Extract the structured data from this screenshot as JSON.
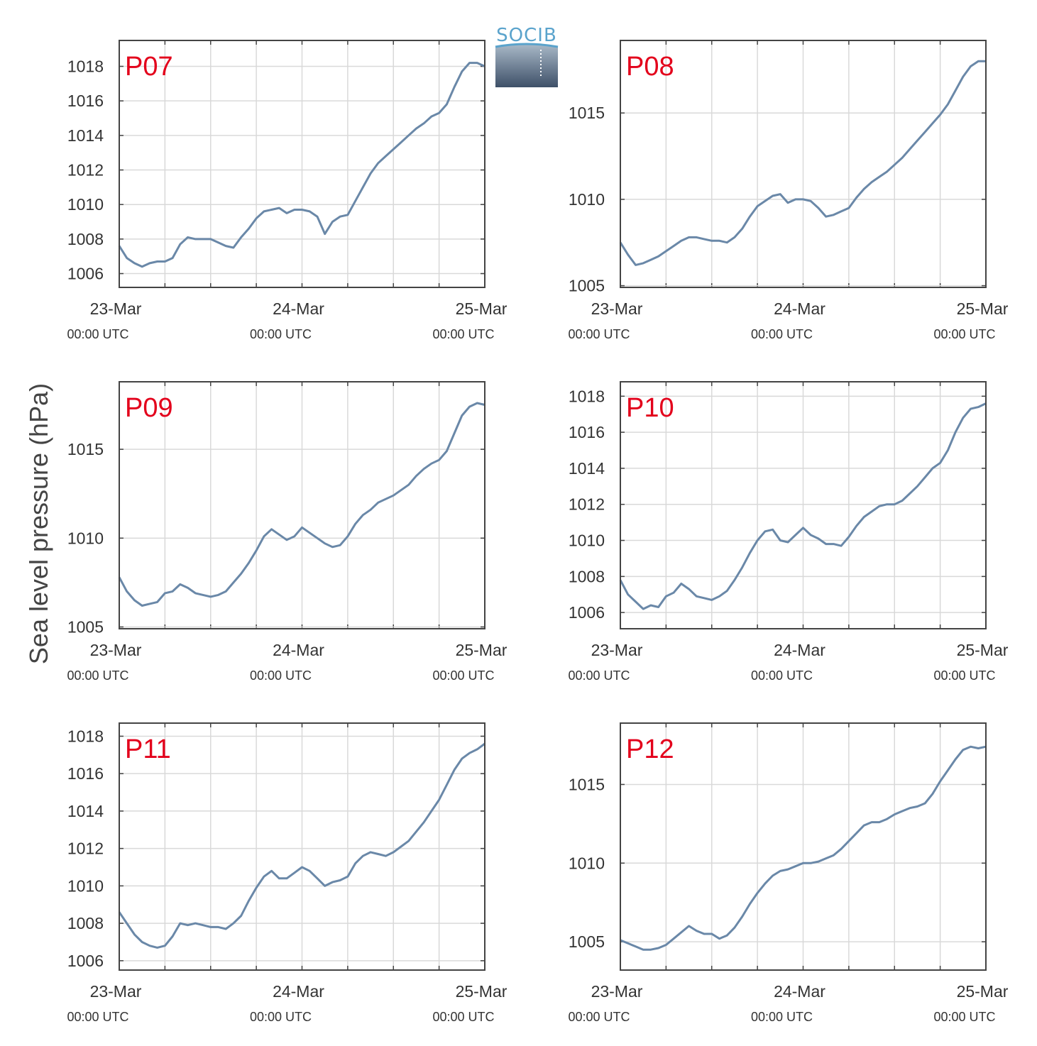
{
  "figure": {
    "ylabel": "Sea level pressure (hPa)",
    "logo_text": "SOCIB",
    "colors": {
      "series": "#6a88a8",
      "panel_label": "#e3001b",
      "grid": "#d9d9d9",
      "axis": "#444444",
      "logo_blue": "#5aa3cc",
      "logo_dark": "#3e5068"
    }
  },
  "chart_data": [
    {
      "type": "line",
      "title": "P07",
      "x_tick_dates": [
        "23-Mar",
        "24-Mar",
        "25-Mar"
      ],
      "x_tick_times": [
        "00:00 UTC",
        "00:00 UTC",
        "00:00 UTC"
      ],
      "x_unit": "hours since 23-Mar 00:00 UTC",
      "xlim": [
        0,
        48
      ],
      "ylim": [
        1005.2,
        1019.5
      ],
      "yticks": [
        1006,
        1008,
        1010,
        1012,
        1014,
        1016,
        1018
      ],
      "grid": true,
      "series": [
        {
          "color": "#6a88a8",
          "x": [
            0,
            1,
            2,
            3,
            4,
            5,
            6,
            7,
            8,
            9,
            10,
            11,
            12,
            13,
            14,
            15,
            16,
            17,
            18,
            19,
            20,
            21,
            22,
            23,
            24,
            25,
            26,
            27,
            28,
            29,
            30,
            31,
            32,
            33,
            34,
            35,
            36,
            37,
            38,
            39,
            40,
            41,
            42,
            43,
            44,
            45,
            46,
            47,
            48
          ],
          "y": [
            1007.6,
            1006.9,
            1006.6,
            1006.4,
            1006.6,
            1006.7,
            1006.7,
            1006.9,
            1007.7,
            1008.1,
            1008.0,
            1008.0,
            1008.0,
            1007.8,
            1007.6,
            1007.5,
            1008.1,
            1008.6,
            1009.2,
            1009.6,
            1009.7,
            1009.8,
            1009.5,
            1009.7,
            1009.7,
            1009.6,
            1009.3,
            1008.3,
            1009.0,
            1009.3,
            1009.4,
            1010.2,
            1011.0,
            1011.8,
            1012.4,
            1012.8,
            1013.2,
            1013.6,
            1014.0,
            1014.4,
            1014.7,
            1015.1,
            1015.3,
            1015.8,
            1016.8,
            1017.7,
            1018.2,
            1018.2,
            1018.0
          ]
        }
      ]
    },
    {
      "type": "line",
      "title": "P08",
      "x_tick_dates": [
        "23-Mar",
        "24-Mar",
        "25-Mar"
      ],
      "x_tick_times": [
        "00:00 UTC",
        "00:00 UTC",
        "00:00 UTC"
      ],
      "x_unit": "hours since 23-Mar 00:00 UTC",
      "xlim": [
        0,
        48
      ],
      "ylim": [
        1004.9,
        1019.2
      ],
      "yticks": [
        1005,
        1010,
        1015
      ],
      "grid": true,
      "series": [
        {
          "color": "#6a88a8",
          "x": [
            0,
            1,
            2,
            3,
            4,
            5,
            6,
            7,
            8,
            9,
            10,
            11,
            12,
            13,
            14,
            15,
            16,
            17,
            18,
            19,
            20,
            21,
            22,
            23,
            24,
            25,
            26,
            27,
            28,
            29,
            30,
            31,
            32,
            33,
            34,
            35,
            36,
            37,
            38,
            39,
            40,
            41,
            42,
            43,
            44,
            45,
            46,
            47,
            48
          ],
          "y": [
            1007.5,
            1006.8,
            1006.2,
            1006.3,
            1006.5,
            1006.7,
            1007.0,
            1007.3,
            1007.6,
            1007.8,
            1007.8,
            1007.7,
            1007.6,
            1007.6,
            1007.5,
            1007.8,
            1008.3,
            1009.0,
            1009.6,
            1009.9,
            1010.2,
            1010.3,
            1009.8,
            1010.0,
            1010.0,
            1009.9,
            1009.5,
            1009.0,
            1009.1,
            1009.3,
            1009.5,
            1010.1,
            1010.6,
            1011.0,
            1011.3,
            1011.6,
            1012.0,
            1012.4,
            1012.9,
            1013.4,
            1013.9,
            1014.4,
            1014.9,
            1015.5,
            1016.3,
            1017.1,
            1017.7,
            1018.0,
            1018.0
          ]
        }
      ]
    },
    {
      "type": "line",
      "title": "P09",
      "x_tick_dates": [
        "23-Mar",
        "24-Mar",
        "25-Mar"
      ],
      "x_tick_times": [
        "00:00 UTC",
        "00:00 UTC",
        "00:00 UTC"
      ],
      "x_unit": "hours since 23-Mar 00:00 UTC",
      "xlim": [
        0,
        48
      ],
      "ylim": [
        1004.9,
        1018.8
      ],
      "yticks": [
        1005,
        1010,
        1015
      ],
      "grid": true,
      "series": [
        {
          "color": "#6a88a8",
          "x": [
            0,
            1,
            2,
            3,
            4,
            5,
            6,
            7,
            8,
            9,
            10,
            11,
            12,
            13,
            14,
            15,
            16,
            17,
            18,
            19,
            20,
            21,
            22,
            23,
            24,
            25,
            26,
            27,
            28,
            29,
            30,
            31,
            32,
            33,
            34,
            35,
            36,
            37,
            38,
            39,
            40,
            41,
            42,
            43,
            44,
            45,
            46,
            47,
            48
          ],
          "y": [
            1007.8,
            1007.0,
            1006.5,
            1006.2,
            1006.3,
            1006.4,
            1006.9,
            1007.0,
            1007.4,
            1007.2,
            1006.9,
            1006.8,
            1006.7,
            1006.8,
            1007.0,
            1007.5,
            1008.0,
            1008.6,
            1009.3,
            1010.1,
            1010.5,
            1010.2,
            1009.9,
            1010.1,
            1010.6,
            1010.3,
            1010.0,
            1009.7,
            1009.5,
            1009.6,
            1010.1,
            1010.8,
            1011.3,
            1011.6,
            1012.0,
            1012.2,
            1012.4,
            1012.7,
            1013.0,
            1013.5,
            1013.9,
            1014.2,
            1014.4,
            1014.9,
            1015.9,
            1016.9,
            1017.4,
            1017.6,
            1017.5
          ]
        }
      ]
    },
    {
      "type": "line",
      "title": "P10",
      "x_tick_dates": [
        "23-Mar",
        "24-Mar",
        "25-Mar"
      ],
      "x_tick_times": [
        "00:00 UTC",
        "00:00 UTC",
        "00:00 UTC"
      ],
      "x_unit": "hours since 23-Mar 00:00 UTC",
      "xlim": [
        0,
        48
      ],
      "ylim": [
        1005.1,
        1018.8
      ],
      "yticks": [
        1006,
        1008,
        1010,
        1012,
        1014,
        1016,
        1018
      ],
      "grid": true,
      "series": [
        {
          "color": "#6a88a8",
          "x": [
            0,
            1,
            2,
            3,
            4,
            5,
            6,
            7,
            8,
            9,
            10,
            11,
            12,
            13,
            14,
            15,
            16,
            17,
            18,
            19,
            20,
            21,
            22,
            23,
            24,
            25,
            26,
            27,
            28,
            29,
            30,
            31,
            32,
            33,
            34,
            35,
            36,
            37,
            38,
            39,
            40,
            41,
            42,
            43,
            44,
            45,
            46,
            47,
            48
          ],
          "y": [
            1007.8,
            1007.0,
            1006.6,
            1006.2,
            1006.4,
            1006.3,
            1006.9,
            1007.1,
            1007.6,
            1007.3,
            1006.9,
            1006.8,
            1006.7,
            1006.9,
            1007.2,
            1007.8,
            1008.5,
            1009.3,
            1010.0,
            1010.5,
            1010.6,
            1010.0,
            1009.9,
            1010.3,
            1010.7,
            1010.3,
            1010.1,
            1009.8,
            1009.8,
            1009.7,
            1010.2,
            1010.8,
            1011.3,
            1011.6,
            1011.9,
            1012.0,
            1012.0,
            1012.2,
            1012.6,
            1013.0,
            1013.5,
            1014.0,
            1014.3,
            1015.0,
            1016.0,
            1016.8,
            1017.3,
            1017.4,
            1017.6
          ]
        }
      ]
    },
    {
      "type": "line",
      "title": "P11",
      "x_tick_dates": [
        "23-Mar",
        "24-Mar",
        "25-Mar"
      ],
      "x_tick_times": [
        "00:00 UTC",
        "00:00 UTC",
        "00:00 UTC"
      ],
      "x_unit": "hours since 23-Mar 00:00 UTC",
      "xlim": [
        0,
        48
      ],
      "ylim": [
        1005.5,
        1018.7
      ],
      "yticks": [
        1006,
        1008,
        1010,
        1012,
        1014,
        1016,
        1018
      ],
      "grid": true,
      "series": [
        {
          "color": "#6a88a8",
          "x": [
            0,
            1,
            2,
            3,
            4,
            5,
            6,
            7,
            8,
            9,
            10,
            11,
            12,
            13,
            14,
            15,
            16,
            17,
            18,
            19,
            20,
            21,
            22,
            23,
            24,
            25,
            26,
            27,
            28,
            29,
            30,
            31,
            32,
            33,
            34,
            35,
            36,
            37,
            38,
            39,
            40,
            41,
            42,
            43,
            44,
            45,
            46,
            47,
            48
          ],
          "y": [
            1008.6,
            1008.0,
            1007.4,
            1007.0,
            1006.8,
            1006.7,
            1006.8,
            1007.3,
            1008.0,
            1007.9,
            1008.0,
            1007.9,
            1007.8,
            1007.8,
            1007.7,
            1008.0,
            1008.4,
            1009.2,
            1009.9,
            1010.5,
            1010.8,
            1010.4,
            1010.4,
            1010.7,
            1011.0,
            1010.8,
            1010.4,
            1010.0,
            1010.2,
            1010.3,
            1010.5,
            1011.2,
            1011.6,
            1011.8,
            1011.7,
            1011.6,
            1011.8,
            1012.1,
            1012.4,
            1012.9,
            1013.4,
            1014.0,
            1014.6,
            1015.4,
            1016.2,
            1016.8,
            1017.1,
            1017.3,
            1017.6
          ]
        }
      ]
    },
    {
      "type": "line",
      "title": "P12",
      "x_tick_dates": [
        "23-Mar",
        "24-Mar",
        "25-Mar"
      ],
      "x_tick_times": [
        "00:00 UTC",
        "00:00 UTC",
        "00:00 UTC"
      ],
      "x_unit": "hours since 23-Mar 00:00 UTC",
      "xlim": [
        0,
        48
      ],
      "ylim": [
        1003.2,
        1018.9
      ],
      "yticks": [
        1005,
        1010,
        1015
      ],
      "grid": true,
      "series": [
        {
          "color": "#6a88a8",
          "x": [
            0,
            1,
            2,
            3,
            4,
            5,
            6,
            7,
            8,
            9,
            10,
            11,
            12,
            13,
            14,
            15,
            16,
            17,
            18,
            19,
            20,
            21,
            22,
            23,
            24,
            25,
            26,
            27,
            28,
            29,
            30,
            31,
            32,
            33,
            34,
            35,
            36,
            37,
            38,
            39,
            40,
            41,
            42,
            43,
            44,
            45,
            46,
            47,
            48
          ],
          "y": [
            1005.1,
            1004.9,
            1004.7,
            1004.5,
            1004.5,
            1004.6,
            1004.8,
            1005.2,
            1005.6,
            1006.0,
            1005.7,
            1005.5,
            1005.5,
            1005.2,
            1005.4,
            1005.9,
            1006.6,
            1007.4,
            1008.1,
            1008.7,
            1009.2,
            1009.5,
            1009.6,
            1009.8,
            1010.0,
            1010.0,
            1010.1,
            1010.3,
            1010.5,
            1010.9,
            1011.4,
            1011.9,
            1012.4,
            1012.6,
            1012.6,
            1012.8,
            1013.1,
            1013.3,
            1013.5,
            1013.6,
            1013.8,
            1014.4,
            1015.2,
            1015.9,
            1016.6,
            1017.2,
            1017.4,
            1017.3,
            1017.4
          ]
        }
      ]
    }
  ]
}
